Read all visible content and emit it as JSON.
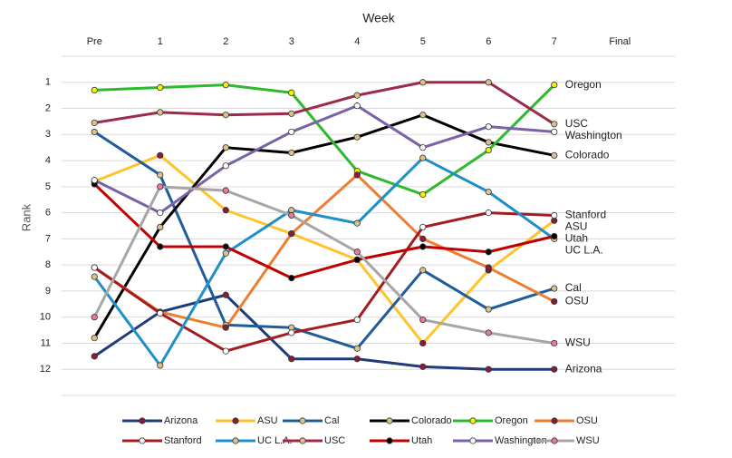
{
  "chart_data": {
    "type": "line",
    "x_label": "Week",
    "y_label": "Rank",
    "categories": [
      "Pre",
      "1",
      "2",
      "3",
      "4",
      "5",
      "6",
      "7",
      "Final"
    ],
    "ylim": [
      0,
      13
    ],
    "y_reversed": true,
    "yticks": [
      1,
      2,
      3,
      4,
      5,
      6,
      7,
      8,
      9,
      10,
      11,
      12
    ],
    "grid": true,
    "end_labels": true,
    "series": [
      {
        "name": "Arizona",
        "color": "#1f3c78",
        "marker_color": "#8b1a3a",
        "values": [
          11.5,
          9.8,
          9.15,
          11.6,
          11.6,
          11.9,
          12,
          12,
          null
        ]
      },
      {
        "name": "ASU",
        "color": "#ffc32b",
        "marker_color": "#8b1a3a",
        "values": [
          4.8,
          3.8,
          5.9,
          6.8,
          7.8,
          11,
          8.2,
          6.3,
          null
        ]
      },
      {
        "name": "Cal",
        "color": "#1f5c99",
        "marker_color": "#d9c38a",
        "values": [
          2.9,
          4.55,
          10.3,
          10.4,
          11.2,
          8.2,
          9.7,
          8.9,
          null
        ]
      },
      {
        "name": "Colorado",
        "color": "#000000",
        "marker_color": "#d9c38a",
        "values": [
          10.8,
          6.55,
          3.5,
          3.7,
          3.1,
          2.25,
          3.3,
          3.8,
          null
        ]
      },
      {
        "name": "Oregon",
        "color": "#2db82d",
        "marker_color": "#f2f200",
        "values": [
          1.3,
          1.2,
          1.1,
          1.4,
          4.4,
          5.3,
          3.6,
          1.1,
          null
        ]
      },
      {
        "name": "OSU",
        "color": "#ed7d31",
        "marker_color": "#8b1a3a",
        "values": [
          8.1,
          9.8,
          10.4,
          6.8,
          4.55,
          7.0,
          8.1,
          9.4,
          null
        ]
      },
      {
        "name": "Stanford",
        "color": "#a31c22",
        "marker_color": "#ffffff",
        "values": [
          8.1,
          9.85,
          11.3,
          10.6,
          10.1,
          6.55,
          6.0,
          6.1,
          null
        ]
      },
      {
        "name": "UC L.A.",
        "color": "#1f8fc8",
        "marker_color": "#d9c38a",
        "values": [
          8.45,
          11.85,
          7.55,
          5.9,
          6.4,
          3.9,
          5.2,
          7.0,
          null
        ]
      },
      {
        "name": "USC",
        "color": "#9e2a4a",
        "marker_color": "#d9c38a",
        "values": [
          2.55,
          2.15,
          2.25,
          2.2,
          1.5,
          1.0,
          1.0,
          2.6,
          null
        ]
      },
      {
        "name": "Utah",
        "color": "#c00000",
        "marker_color": "#000000",
        "values": [
          4.9,
          7.3,
          7.3,
          8.5,
          7.8,
          7.3,
          7.5,
          6.9,
          null
        ]
      },
      {
        "name": "Washington",
        "color": "#7b62a8",
        "marker_color": "#ffffff",
        "values": [
          4.75,
          6.0,
          4.2,
          2.9,
          1.9,
          3.5,
          2.7,
          2.9,
          null
        ]
      },
      {
        "name": "WSU",
        "color": "#a6a6a6",
        "marker_color": "#e87a9a",
        "values": [
          10.0,
          5.0,
          5.15,
          6.1,
          7.5,
          10.1,
          10.6,
          11.0,
          null
        ]
      }
    ]
  }
}
